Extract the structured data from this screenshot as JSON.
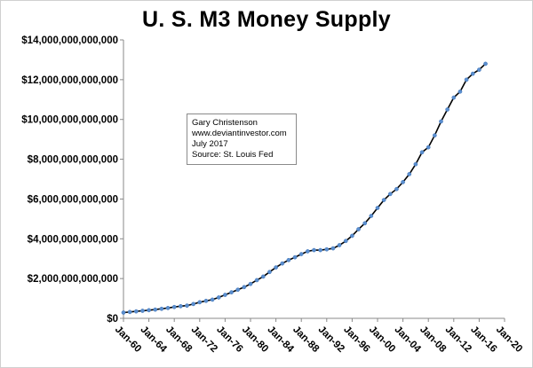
{
  "chart_data": {
    "type": "line",
    "title": "U. S. M3 Money Supply",
    "annotation": [
      "Gary Christenson",
      "www.deviantinvestor.com",
      "July 2017",
      "Source:  St. Louis Fed"
    ],
    "y_tick_labels": [
      "$0",
      "$2,000,000,000,000",
      "$4,000,000,000,000",
      "$6,000,000,000,000",
      "$8,000,000,000,000",
      "$10,000,000,000,000",
      "$12,000,000,000,000",
      "$14,000,000,000,000"
    ],
    "y_ticks": [
      0,
      2000000000000,
      4000000000000,
      6000000000000,
      8000000000000,
      10000000000000,
      12000000000000,
      14000000000000
    ],
    "ylim": [
      0,
      14000000000000
    ],
    "x_tick_labels": [
      "Jan-60",
      "Jan-64",
      "Jan-68",
      "Jan-72",
      "Jan-76",
      "Jan-80",
      "Jan-84",
      "Jan-88",
      "Jan-92",
      "Jan-96",
      "Jan-00",
      "Jan-04",
      "Jan-08",
      "Jan-12",
      "Jan-16",
      "Jan-20"
    ],
    "x_ticks": [
      1960,
      1964,
      1968,
      1972,
      1976,
      1980,
      1984,
      1988,
      1992,
      1996,
      2000,
      2004,
      2008,
      2012,
      2016,
      2020
    ],
    "xlim": [
      1960,
      2020
    ],
    "grid": false,
    "legend": "none",
    "line_color": "#000000",
    "marker_color": "#5b8fcf",
    "series": [
      {
        "x": [
          1960,
          1961,
          1962,
          1963,
          1964,
          1965,
          1966,
          1967,
          1968,
          1969,
          1970,
          1971,
          1972,
          1973,
          1974,
          1975,
          1976,
          1977,
          1978,
          1979,
          1980,
          1981,
          1982,
          1983,
          1984,
          1985,
          1986,
          1987,
          1988,
          1989,
          1990,
          1991,
          1992,
          1993,
          1994,
          1995,
          1996,
          1997,
          1998,
          1999,
          2000,
          2001,
          2002,
          2003,
          2004,
          2005,
          2006,
          2007,
          2008,
          2009,
          2010,
          2011,
          2012,
          2013,
          2014,
          2015,
          2016,
          2017
        ],
        "values": [
          290000000000,
          320000000000,
          350000000000,
          380000000000,
          410000000000,
          440000000000,
          480000000000,
          520000000000,
          570000000000,
          610000000000,
          640000000000,
          720000000000,
          810000000000,
          880000000000,
          940000000000,
          1050000000000,
          1180000000000,
          1310000000000,
          1440000000000,
          1570000000000,
          1730000000000,
          1920000000000,
          2100000000000,
          2330000000000,
          2560000000000,
          2760000000000,
          2930000000000,
          3070000000000,
          3230000000000,
          3370000000000,
          3430000000000,
          3430000000000,
          3470000000000,
          3520000000000,
          3680000000000,
          3890000000000,
          4150000000000,
          4480000000000,
          4780000000000,
          5150000000000,
          5550000000000,
          5950000000000,
          6250000000000,
          6500000000000,
          6850000000000,
          7250000000000,
          7750000000000,
          8350000000000,
          8600000000000,
          9200000000000,
          9900000000000,
          10500000000000,
          11100000000000,
          11400000000000,
          12000000000000,
          12300000000000,
          12500000000000,
          12800000000000
        ]
      }
    ]
  }
}
